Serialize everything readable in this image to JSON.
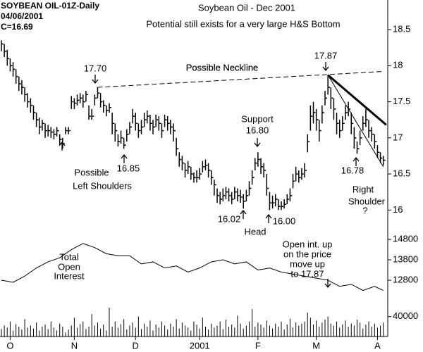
{
  "chart_data": [
    {
      "type": "ohlc",
      "title": "Soybean Oil - Dec 2001",
      "subtitle": "Potential still exists for a very large H&S Bottom",
      "header": [
        "SOYBEAN OIL-01Z-Daily",
        "04/06/2001",
        "C=16.69"
      ],
      "color": "#000000",
      "ylim": [
        15.74,
        18.91
      ],
      "yticks": [
        16,
        16.5,
        17,
        17.5,
        18,
        18.5
      ],
      "high": [
        18.35,
        18.3,
        18.22,
        18.1,
        18.05,
        17.95,
        17.85,
        17.8,
        17.7,
        17.62,
        17.55,
        17.45,
        17.35,
        17.28,
        17.25,
        17.2,
        17.18,
        17.15,
        17.12,
        17.15,
        17.05,
        17.0,
        17.15,
        17.15,
        17.58,
        17.55,
        17.6,
        17.62,
        17.6,
        17.65,
        17.45,
        17.4,
        17.6,
        17.7,
        17.62,
        17.52,
        17.45,
        17.48,
        17.35,
        17.2,
        17.05,
        17.1,
        17.0,
        17.12,
        17.22,
        17.4,
        17.35,
        17.2,
        17.25,
        17.35,
        17.38,
        17.32,
        17.25,
        17.32,
        17.3,
        17.2,
        17.32,
        17.3,
        17.25,
        17.2,
        17.0,
        16.8,
        16.75,
        16.65,
        16.68,
        16.6,
        16.52,
        16.55,
        16.58,
        16.68,
        16.7,
        16.65,
        16.55,
        16.42,
        16.3,
        16.25,
        16.3,
        16.32,
        16.3,
        16.25,
        16.32,
        16.3,
        16.28,
        16.22,
        16.28,
        16.4,
        16.55,
        16.72,
        16.8,
        16.72,
        16.65,
        16.5,
        16.25,
        16.2,
        16.22,
        16.15,
        16.12,
        16.15,
        16.22,
        16.3,
        16.5,
        16.6,
        16.55,
        16.58,
        16.65,
        17.05,
        17.45,
        17.5,
        17.4,
        17.25,
        17.45,
        17.65,
        17.87,
        17.7,
        17.55,
        17.35,
        17.25,
        17.3,
        17.45,
        17.5,
        17.35,
        17.15,
        16.95,
        17.1,
        17.3,
        17.4,
        17.25,
        17.15,
        17.05,
        16.9,
        16.8,
        16.75
      ],
      "low": [
        18.2,
        18.12,
        18.0,
        17.92,
        17.85,
        17.75,
        17.65,
        17.6,
        17.5,
        17.42,
        17.35,
        17.25,
        17.15,
        17.05,
        17.1,
        17.0,
        17.02,
        17.0,
        16.98,
        17.02,
        16.9,
        16.85,
        17.05,
        17.05,
        17.4,
        17.4,
        17.45,
        17.48,
        17.42,
        17.5,
        17.25,
        17.25,
        17.45,
        17.55,
        17.42,
        17.35,
        17.3,
        17.35,
        17.05,
        16.95,
        16.88,
        16.92,
        16.85,
        16.95,
        17.05,
        17.2,
        17.1,
        17.0,
        17.05,
        17.15,
        17.2,
        17.1,
        17.05,
        17.15,
        17.1,
        17.0,
        17.15,
        17.1,
        17.05,
        16.95,
        16.75,
        16.6,
        16.55,
        16.45,
        16.5,
        16.42,
        16.38,
        16.38,
        16.42,
        16.52,
        16.55,
        16.45,
        16.35,
        16.2,
        16.1,
        16.08,
        16.12,
        16.15,
        16.12,
        16.08,
        16.15,
        16.12,
        16.1,
        16.02,
        16.12,
        16.2,
        16.35,
        16.55,
        16.6,
        16.5,
        16.45,
        16.2,
        16.0,
        16.02,
        16.05,
        16.0,
        16.0,
        16.02,
        16.08,
        16.12,
        16.3,
        16.4,
        16.38,
        16.42,
        16.45,
        16.8,
        17.1,
        17.2,
        17.1,
        16.95,
        17.2,
        17.45,
        17.6,
        17.4,
        17.25,
        17.05,
        17.0,
        17.1,
        17.25,
        17.3,
        17.05,
        16.85,
        16.78,
        16.9,
        17.1,
        17.15,
        17.0,
        16.95,
        16.85,
        16.72,
        16.65,
        16.62
      ],
      "close": [
        18.3,
        18.2,
        18.1,
        18.0,
        17.95,
        17.85,
        17.75,
        17.7,
        17.6,
        17.5,
        17.45,
        17.35,
        17.25,
        17.15,
        17.2,
        17.1,
        17.1,
        17.08,
        17.05,
        17.1,
        16.98,
        16.92,
        17.1,
        17.1,
        17.5,
        17.48,
        17.52,
        17.55,
        17.5,
        17.6,
        17.3,
        17.3,
        17.55,
        17.62,
        17.5,
        17.45,
        17.38,
        17.42,
        17.2,
        17.1,
        16.95,
        17.0,
        16.9,
        17.05,
        17.15,
        17.3,
        17.2,
        17.1,
        17.15,
        17.25,
        17.3,
        17.2,
        17.15,
        17.25,
        17.2,
        17.1,
        17.25,
        17.2,
        17.15,
        17.1,
        16.85,
        16.7,
        16.65,
        16.55,
        16.6,
        16.5,
        16.45,
        16.45,
        16.5,
        16.6,
        16.62,
        16.55,
        16.45,
        16.35,
        16.2,
        16.15,
        16.2,
        16.25,
        16.2,
        16.15,
        16.25,
        16.2,
        16.18,
        16.12,
        16.2,
        16.3,
        16.45,
        16.65,
        16.7,
        16.6,
        16.55,
        16.3,
        16.1,
        16.1,
        16.15,
        16.05,
        16.05,
        16.08,
        16.15,
        16.2,
        16.4,
        16.5,
        16.45,
        16.5,
        16.55,
        16.95,
        17.3,
        17.35,
        17.25,
        17.1,
        17.35,
        17.55,
        17.7,
        17.55,
        17.4,
        17.2,
        17.1,
        17.2,
        17.35,
        17.4,
        17.2,
        17.0,
        16.85,
        17.0,
        17.2,
        17.25,
        17.1,
        17.05,
        16.95,
        16.8,
        16.72,
        16.69
      ],
      "neckline": {
        "label": "Possible Neckline",
        "x": [
          33,
          131
        ],
        "y": [
          17.7,
          17.92
        ]
      },
      "trendlines": [
        {
          "x": [
            112,
            132
          ],
          "y": [
            17.87,
            17.18
          ]
        },
        {
          "x": [
            112,
            131
          ],
          "y": [
            17.87,
            16.6
          ]
        }
      ],
      "annotations": [
        "17.70",
        "Possible Neckline",
        "17.87",
        "Support",
        "16.80",
        "Possible",
        "Left Shoulders",
        "16.85",
        "16.02",
        "Head",
        "16.00",
        "16.78",
        "Right",
        "Shoulder",
        "?"
      ]
    },
    {
      "type": "line",
      "color": "#000000",
      "ylim": [
        11870,
        15320
      ],
      "yticks": [
        12800,
        13800,
        14800
      ],
      "x": [
        0,
        4,
        8,
        12,
        16,
        20,
        24,
        28,
        32,
        36,
        40,
        44,
        48,
        52,
        56,
        60,
        64,
        68,
        72,
        76,
        80,
        84,
        88,
        92,
        96,
        100,
        104,
        108,
        112,
        116,
        120,
        124,
        128,
        131
      ],
      "values": [
        12800,
        12700,
        13000,
        13400,
        13700,
        13900,
        14300,
        14600,
        14400,
        14100,
        14000,
        14000,
        13600,
        13700,
        13400,
        13500,
        13200,
        13400,
        13700,
        13800,
        13600,
        13700,
        13300,
        13400,
        13200,
        13100,
        13000,
        12900,
        12800,
        12500,
        12600,
        12300,
        12500,
        12300
      ],
      "annotations": [
        "Total",
        "Open",
        "Interest",
        "Open int. up",
        "on the price",
        "move up",
        "to 17.87"
      ]
    },
    {
      "type": "bar",
      "color": "#000000",
      "ylim": [
        0,
        75000
      ],
      "yticks": [
        40000
      ],
      "xlim": [
        0,
        133
      ],
      "xticks": [
        {
          "value": 3,
          "label": "O"
        },
        {
          "value": 25,
          "label": "N"
        },
        {
          "value": 46,
          "label": "D"
        },
        {
          "value": 68,
          "label": "2001"
        },
        {
          "value": 88,
          "label": "F"
        },
        {
          "value": 108,
          "label": "M"
        },
        {
          "value": 129,
          "label": "A"
        }
      ],
      "values": [
        15000,
        22000,
        18000,
        30000,
        12000,
        25000,
        20000,
        14000,
        35000,
        18000,
        22000,
        16000,
        28000,
        12000,
        20000,
        24000,
        15000,
        30000,
        18000,
        12000,
        26000,
        20000,
        8000,
        14000,
        22000,
        38000,
        18000,
        25000,
        30000,
        15000,
        20000,
        45000,
        22000,
        28000,
        16000,
        24000,
        12000,
        58000,
        20000,
        30000,
        18000,
        25000,
        35000,
        14000,
        22000,
        28000,
        18000,
        40000,
        15000,
        26000,
        20000,
        32000,
        12000,
        24000,
        18000,
        30000,
        22000,
        14000,
        26000,
        20000,
        35000,
        16000,
        28000,
        22000,
        18000,
        12000,
        30000,
        24000,
        16000,
        38000,
        20000,
        14000,
        26000,
        18000,
        22000,
        30000,
        15000,
        34000,
        20000,
        24000,
        18000,
        42000,
        26000,
        16000,
        22000,
        30000,
        55000,
        20000,
        28000,
        24000,
        18000,
        32000,
        22000,
        16000,
        26000,
        20000,
        30000,
        14000,
        24000,
        36000,
        18000,
        28000,
        22000,
        26000,
        30000,
        48000,
        38000,
        24000,
        32000,
        20000,
        28000,
        34000,
        40000,
        26000,
        22000,
        30000,
        18000,
        24000,
        32000,
        20000,
        26000,
        22000,
        34000,
        28000,
        16000,
        24000,
        30000,
        20000,
        26000,
        18000,
        22000,
        28000
      ]
    }
  ]
}
